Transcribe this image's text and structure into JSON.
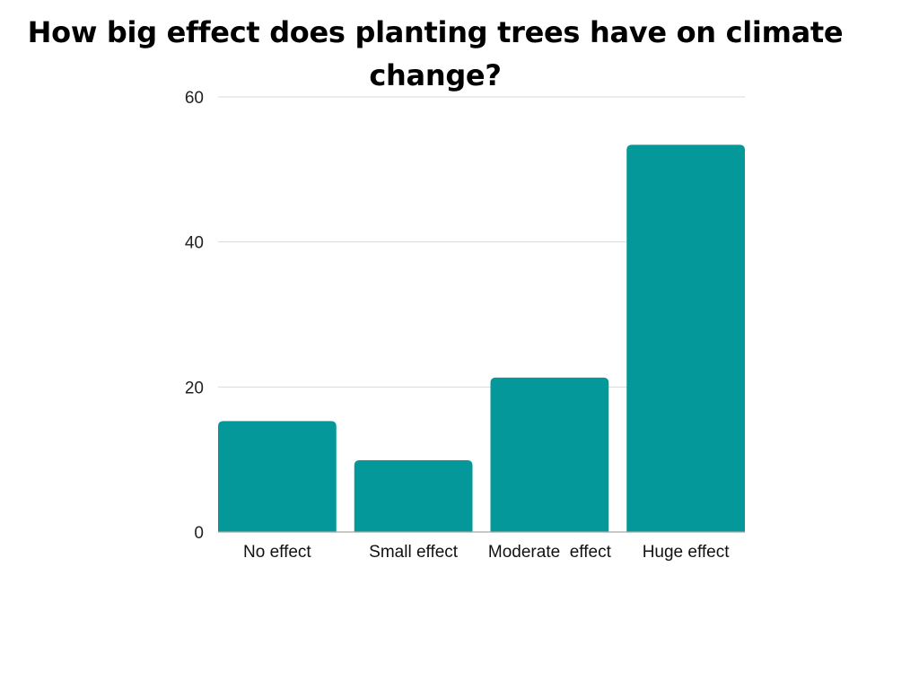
{
  "chart_data": {
    "type": "bar",
    "title": "How big effect does planting trees have on climate change?",
    "xlabel": "",
    "ylabel": "",
    "categories": [
      "No effect",
      "Small effect",
      "Moderate  effect",
      "Huge effect"
    ],
    "values": [
      15.3,
      9.9,
      21.3,
      53.4
    ],
    "ylim": [
      0,
      60
    ],
    "yticks": [
      0,
      20,
      40,
      60
    ],
    "grid": true,
    "legend": "none"
  },
  "colors": {
    "bar": "#05989b",
    "grid": "#d9d9d9",
    "axis": "#a6a6a6"
  }
}
